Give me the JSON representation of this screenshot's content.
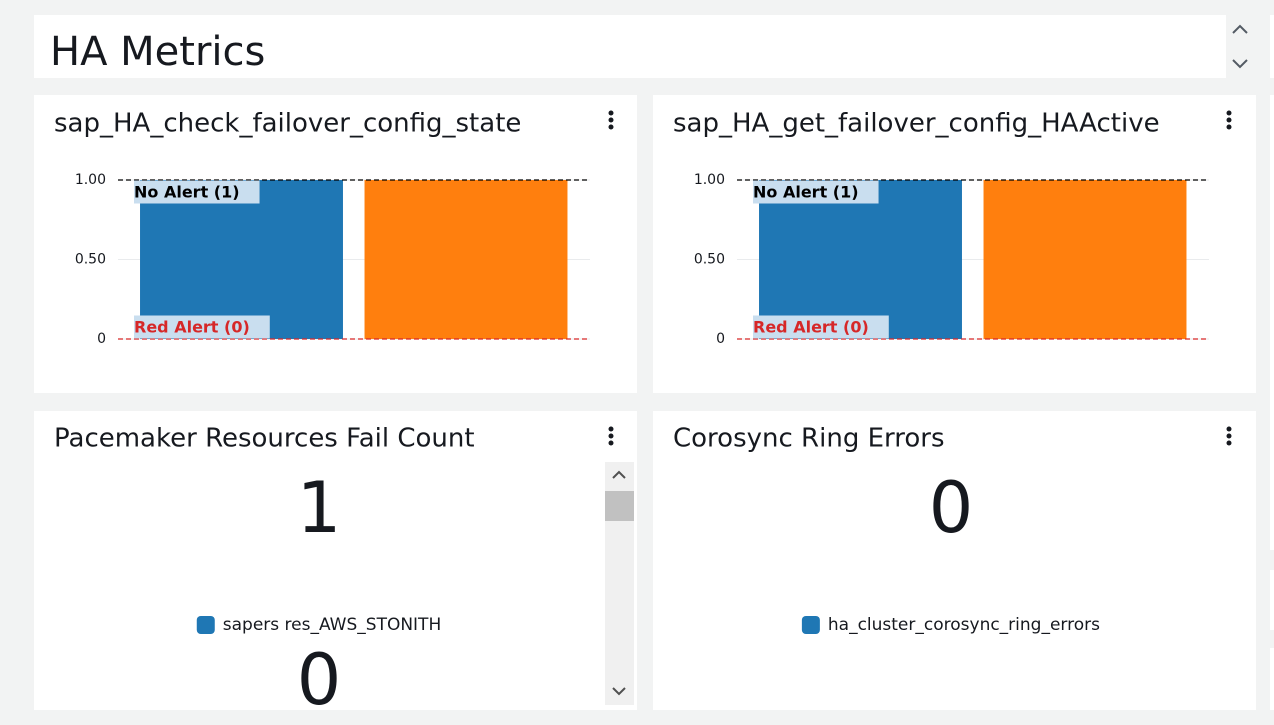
{
  "header": {
    "title": "HA Metrics"
  },
  "chart_data": [
    {
      "type": "bar",
      "title": "sap_HA_check_failover_config_state",
      "categories": [
        null,
        null
      ],
      "values": [
        1,
        1
      ],
      "colors": [
        "#1f77b4",
        "#ff7f0e"
      ],
      "ylim": [
        0,
        1
      ],
      "yticks": [
        0,
        {
          "value": 0.5,
          "label": "0.50"
        },
        {
          "value": 1,
          "label": "1.00"
        }
      ],
      "grid": true,
      "annotations": [
        {
          "label": "No Alert (1)",
          "value": 1,
          "color": "#000000"
        },
        {
          "label": "Red Alert (0)",
          "value": 0,
          "color": "#d62728"
        }
      ]
    },
    {
      "type": "bar",
      "title": "sap_HA_get_failover_config_HAActive",
      "categories": [
        null,
        null
      ],
      "values": [
        1,
        1
      ],
      "colors": [
        "#1f77b4",
        "#ff7f0e"
      ],
      "ylim": [
        0,
        1
      ],
      "yticks": [
        0,
        {
          "value": 0.5,
          "label": "0.50"
        },
        {
          "value": 1,
          "label": "1.00"
        }
      ],
      "grid": true,
      "annotations": [
        {
          "label": "No Alert (1)",
          "value": 1,
          "color": "#000000"
        },
        {
          "label": "Red Alert (0)",
          "value": 0,
          "color": "#d62728"
        }
      ]
    }
  ],
  "widgets": [
    {
      "title": "Pacemaker Resources Fail Count",
      "metrics": [
        {
          "value": 1,
          "label": "sapers res_AWS_STONITH",
          "color": "#1f77b4"
        },
        {
          "value": 0
        }
      ]
    },
    {
      "title": "Corosync Ring Errors",
      "metrics": [
        {
          "value": 0,
          "label": "ha_cluster_corosync_ring_errors",
          "color": "#1f77b4"
        }
      ]
    }
  ]
}
